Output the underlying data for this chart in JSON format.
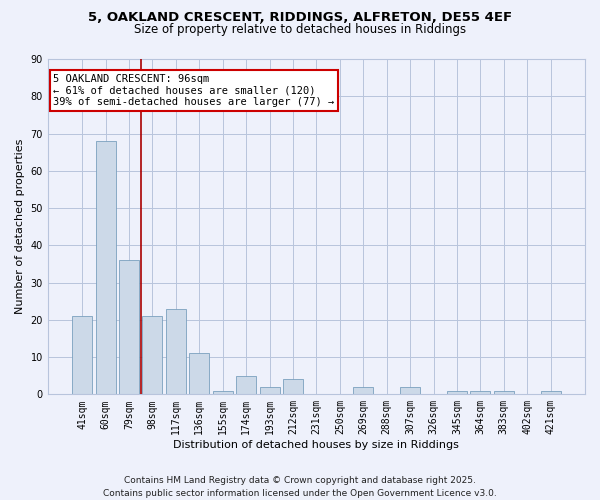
{
  "title_line1": "5, OAKLAND CRESCENT, RIDDINGS, ALFRETON, DE55 4EF",
  "title_line2": "Size of property relative to detached houses in Riddings",
  "categories": [
    "41sqm",
    "60sqm",
    "79sqm",
    "98sqm",
    "117sqm",
    "136sqm",
    "155sqm",
    "174sqm",
    "193sqm",
    "212sqm",
    "231sqm",
    "250sqm",
    "269sqm",
    "288sqm",
    "307sqm",
    "326sqm",
    "345sqm",
    "364sqm",
    "383sqm",
    "402sqm",
    "421sqm"
  ],
  "values": [
    21,
    68,
    36,
    21,
    23,
    11,
    1,
    5,
    2,
    4,
    0,
    0,
    2,
    0,
    2,
    0,
    1,
    1,
    1,
    0,
    1
  ],
  "bar_color": "#ccd9e8",
  "bar_edge_color": "#7aa0be",
  "xlabel": "Distribution of detached houses by size in Riddings",
  "ylabel": "Number of detached properties",
  "ylim": [
    0,
    90
  ],
  "yticks": [
    0,
    10,
    20,
    30,
    40,
    50,
    60,
    70,
    80,
    90
  ],
  "vline_x": 2.5,
  "vline_color": "#aa0000",
  "annotation_line1": "5 OAKLAND CRESCENT: 96sqm",
  "annotation_line2": "← 61% of detached houses are smaller (120)",
  "annotation_line3": "39% of semi-detached houses are larger (77) →",
  "annotation_box_color": "#ffffff",
  "annotation_box_edge": "#cc0000",
  "footer_line1": "Contains HM Land Registry data © Crown copyright and database right 2025.",
  "footer_line2": "Contains public sector information licensed under the Open Government Licence v3.0.",
  "background_color": "#eef1fb",
  "plot_bg_color": "#eef1fb",
  "grid_color": "#b8c4dc",
  "title_fontsize": 9.5,
  "subtitle_fontsize": 8.5,
  "axis_label_fontsize": 8,
  "tick_fontsize": 7,
  "annotation_fontsize": 7.5,
  "footer_fontsize": 6.5
}
